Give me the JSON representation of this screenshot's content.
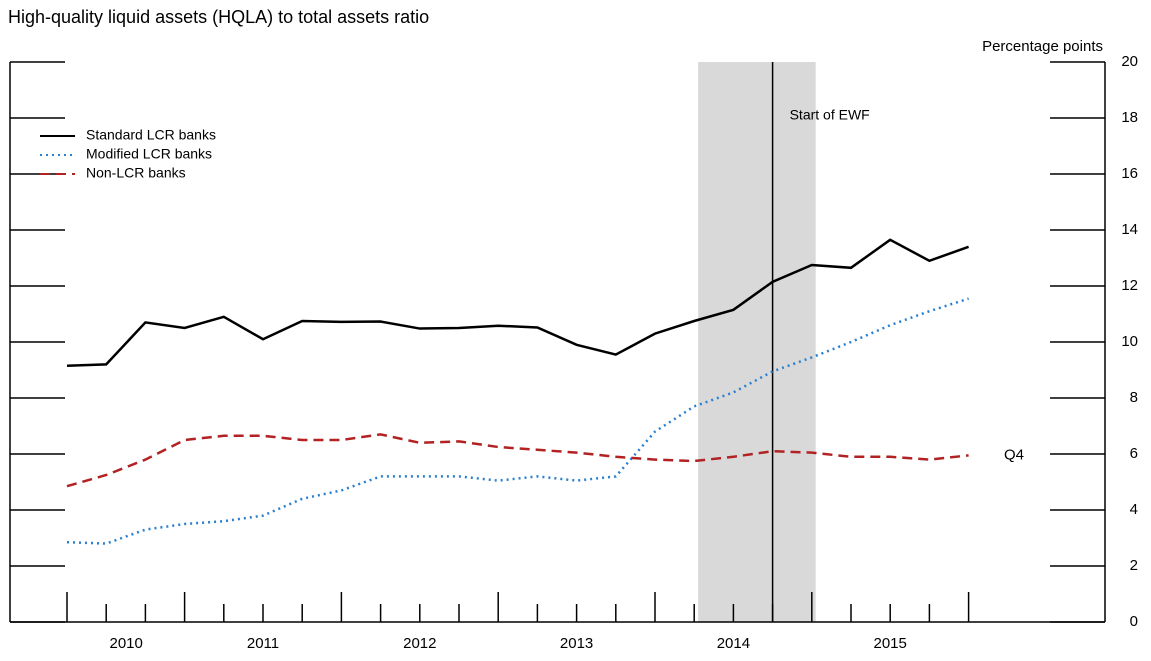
{
  "chart_data": {
    "type": "line",
    "title": "High-quality liquid assets (HQLA) to total assets ratio",
    "y_axis_label": "Percentage points",
    "categories": [
      null,
      "2010",
      null,
      null,
      null,
      "2011",
      null,
      null,
      null,
      "2012",
      null,
      null,
      null,
      "2013",
      null,
      null,
      null,
      "2014",
      null,
      null,
      null,
      "2015",
      null,
      null
    ],
    "series": [
      {
        "name": "Standard LCR banks",
        "color": "#000000",
        "dash": "solid",
        "values": [
          9.15,
          9.2,
          10.7,
          10.5,
          10.9,
          10.1,
          10.75,
          10.72,
          10.73,
          10.48,
          10.5,
          10.58,
          10.52,
          9.9,
          9.55,
          10.3,
          10.75,
          11.15,
          12.15,
          12.75,
          12.65,
          13.65,
          12.9,
          13.4
        ]
      },
      {
        "name": "Modified LCR banks",
        "color": "#2a7fd0",
        "dash": "dotted",
        "values": [
          2.85,
          2.8,
          3.3,
          3.5,
          3.6,
          3.8,
          4.4,
          4.7,
          5.2,
          5.2,
          5.2,
          5.05,
          5.2,
          5.05,
          5.2,
          6.8,
          7.7,
          8.2,
          8.95,
          9.45,
          10.0,
          10.6,
          11.1,
          11.55
        ]
      },
      {
        "name": "Non-LCR banks",
        "color": "#b22222",
        "dash": "dashed",
        "values": [
          4.85,
          5.25,
          5.8,
          6.5,
          6.65,
          6.65,
          6.5,
          6.5,
          6.7,
          6.4,
          6.45,
          6.25,
          6.15,
          6.05,
          5.9,
          5.8,
          5.75,
          5.9,
          6.1,
          6.05,
          5.9,
          5.9,
          5.8,
          5.95
        ]
      }
    ],
    "ylim": [
      0,
      20
    ],
    "yticks": [
      0,
      2,
      4,
      6,
      8,
      10,
      12,
      14,
      16,
      18,
      20
    ],
    "shaded_x": [
      16.1,
      19.1
    ],
    "event_line": {
      "x": 18,
      "label": "Start of EWF"
    },
    "end_label": "Q4"
  }
}
